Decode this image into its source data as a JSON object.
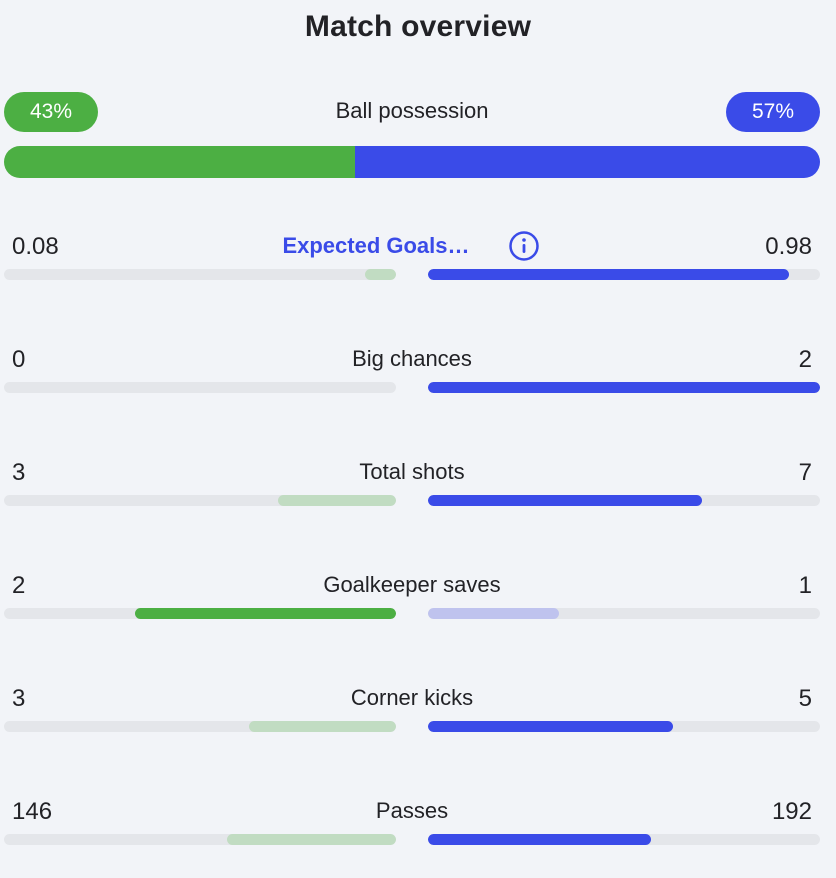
{
  "title": "Match overview",
  "colors": {
    "home": "#4caf43",
    "away": "#3a4be8",
    "home_light": "#c1dcc2",
    "away_light": "#bfc3ee",
    "track": "#e4e6ea"
  },
  "possession": {
    "label": "Ball possession",
    "home_text": "43%",
    "away_text": "57%",
    "home_fraction": 0.43,
    "away_fraction": 0.57
  },
  "stats": [
    {
      "key": "xg",
      "label": "Expected Goals…",
      "home": "0.08",
      "away": "0.98",
      "home_fraction": 0.08,
      "away_fraction": 0.92,
      "dominant": "away",
      "link": true,
      "icon": "info-icon"
    },
    {
      "key": "big-chances",
      "label": "Big chances",
      "home": "0",
      "away": "2",
      "home_fraction": 0.0,
      "away_fraction": 1.0,
      "dominant": "away"
    },
    {
      "key": "total-shots",
      "label": "Total shots",
      "home": "3",
      "away": "7",
      "home_fraction": 0.3,
      "away_fraction": 0.7,
      "dominant": "away"
    },
    {
      "key": "goalkeeper-saves",
      "label": "Goalkeeper saves",
      "home": "2",
      "away": "1",
      "home_fraction": 0.667,
      "away_fraction": 0.333,
      "dominant": "home"
    },
    {
      "key": "corner-kicks",
      "label": "Corner kicks",
      "home": "3",
      "away": "5",
      "home_fraction": 0.375,
      "away_fraction": 0.625,
      "dominant": "away"
    },
    {
      "key": "passes",
      "label": "Passes",
      "home": "146",
      "away": "192",
      "home_fraction": 0.432,
      "away_fraction": 0.568,
      "dominant": "away"
    }
  ]
}
